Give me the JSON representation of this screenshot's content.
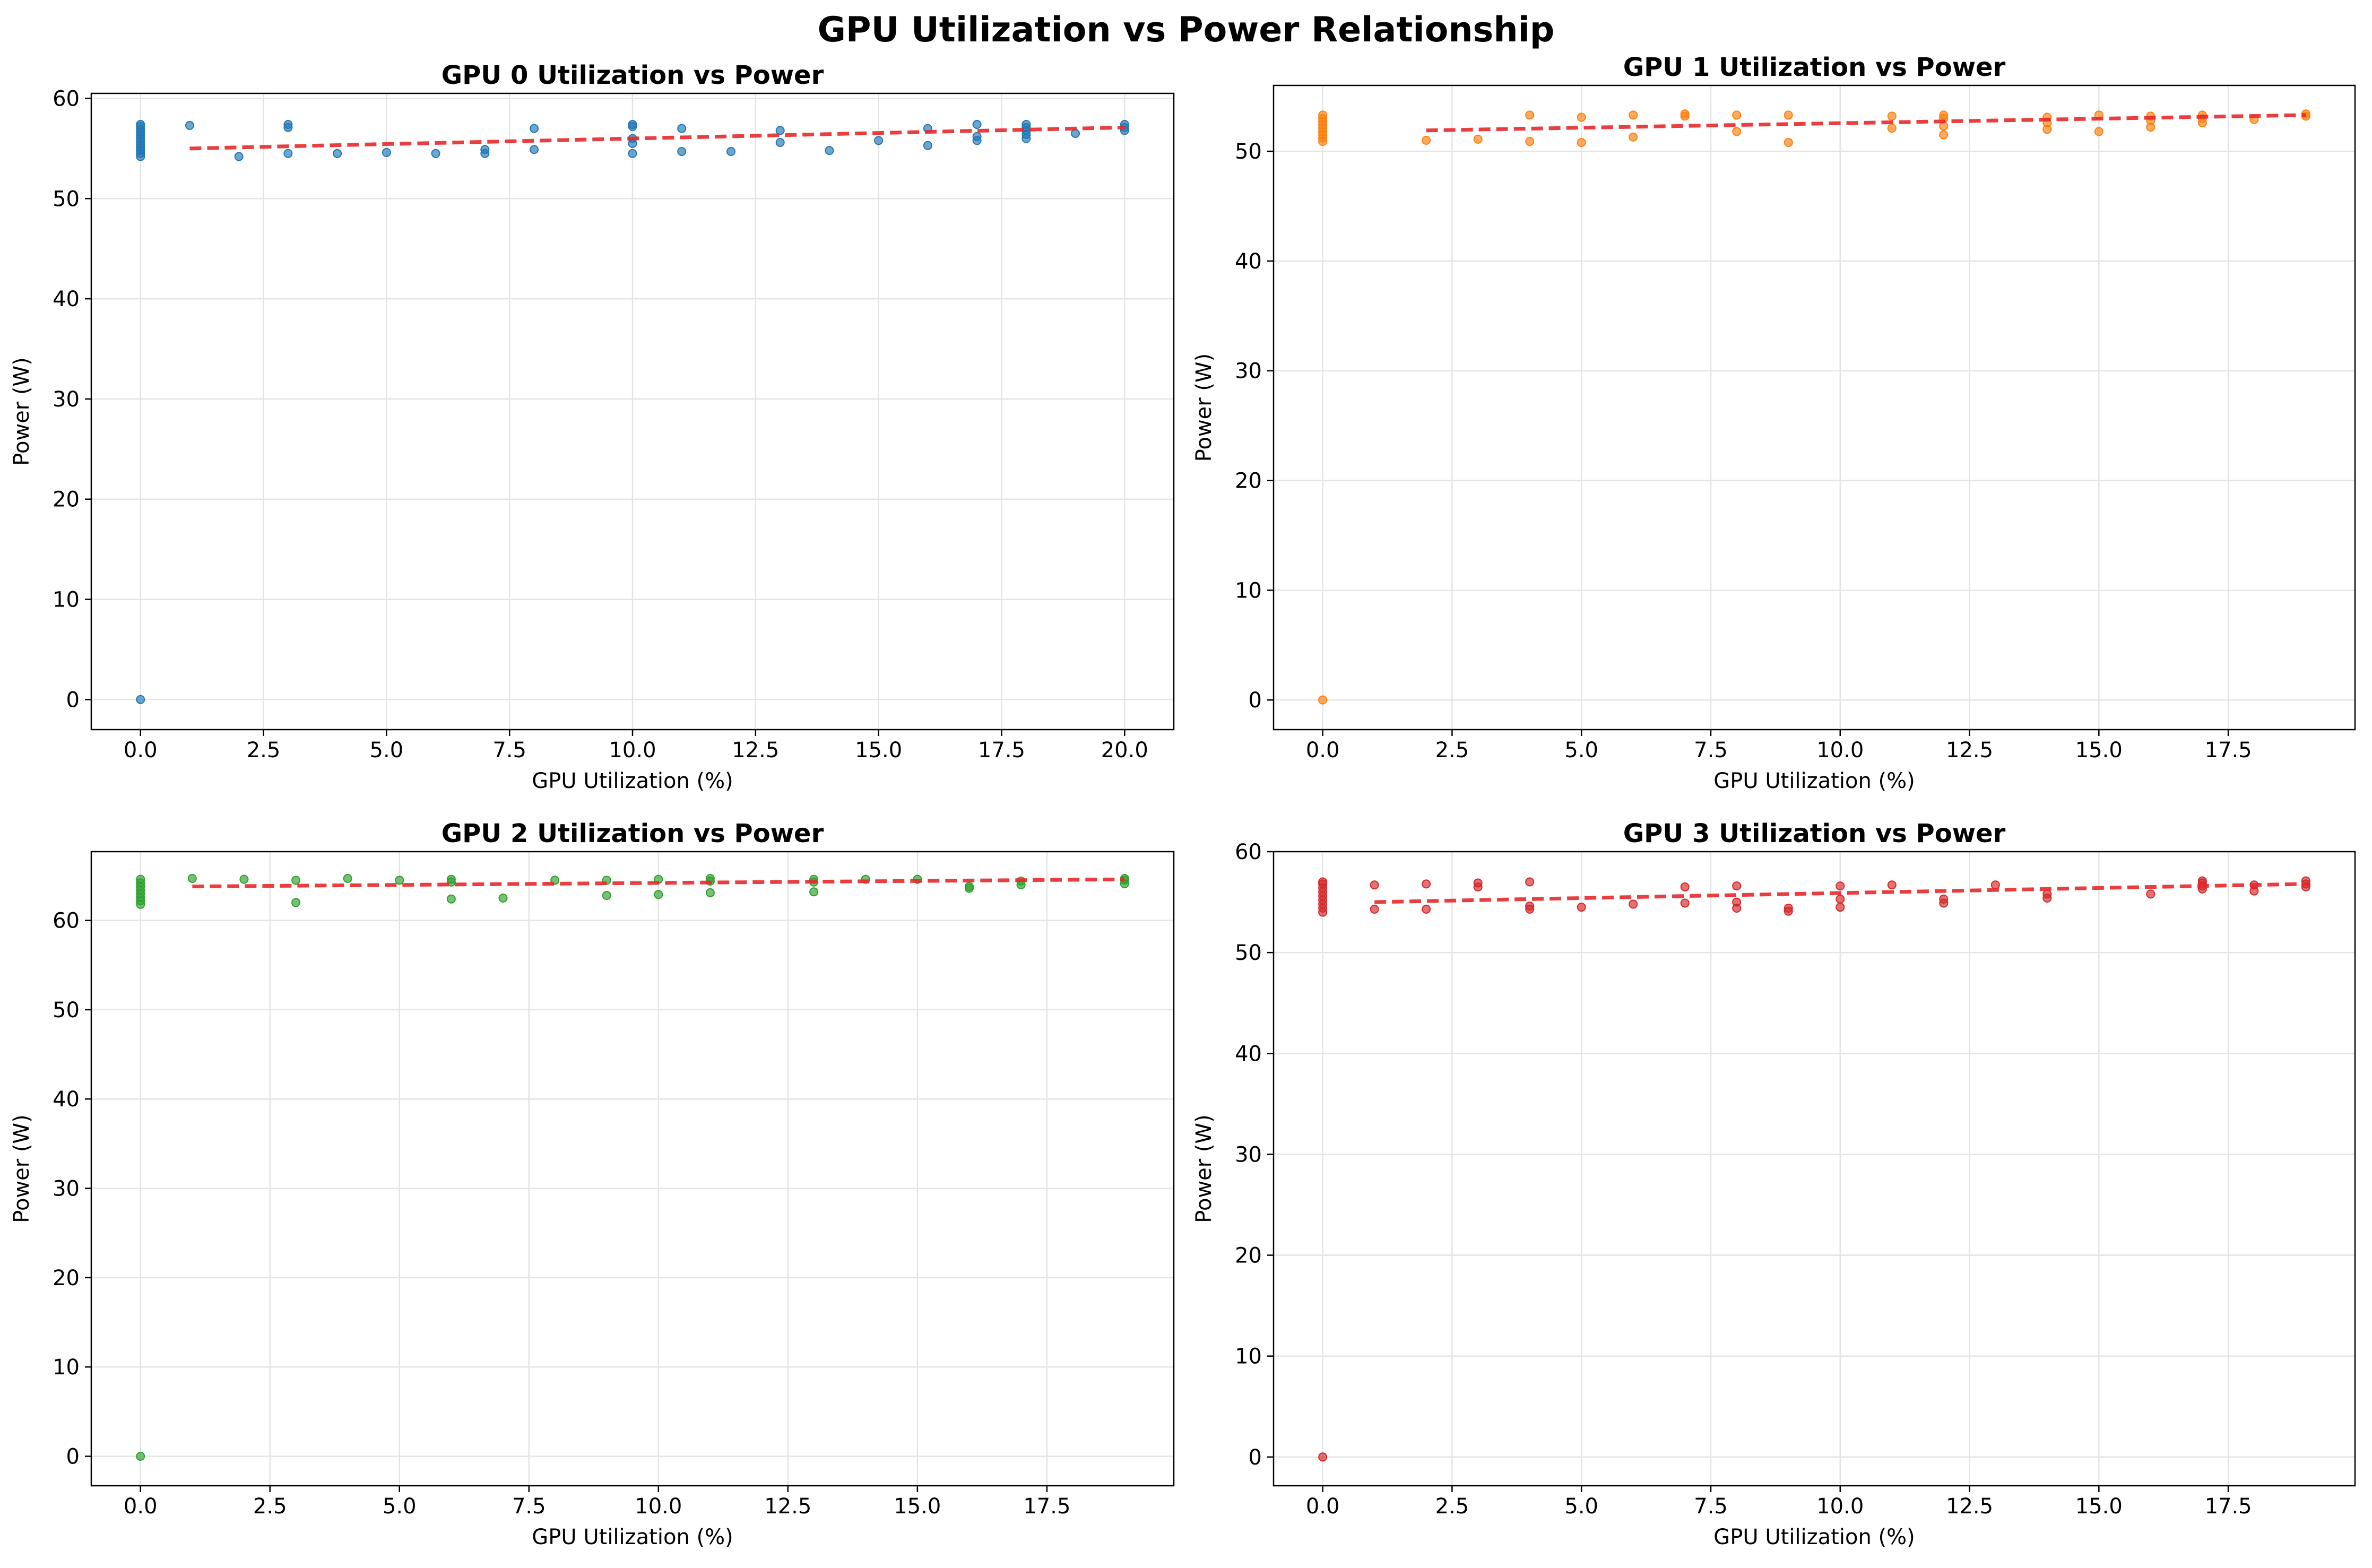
{
  "figure": {
    "suptitle": "GPU Utilization vs Power Relationship"
  },
  "chart_data": [
    {
      "type": "scatter",
      "title": "GPU 0 Utilization vs Power",
      "xlabel": "GPU Utilization (%)",
      "ylabel": "Power (W)",
      "xlim": [
        -1.0,
        21.0
      ],
      "ylim": [
        -3.0,
        60.5
      ],
      "xticks": [
        0,
        2.5,
        5,
        7.5,
        10,
        12.5,
        15,
        17.5,
        20
      ],
      "xtick_labels": [
        "0.0",
        "2.5",
        "5.0",
        "7.5",
        "10.0",
        "12.5",
        "15.0",
        "17.5",
        "20.0"
      ],
      "yticks": [
        0,
        10,
        20,
        30,
        40,
        50,
        60
      ],
      "ytick_labels": [
        "0",
        "10",
        "20",
        "30",
        "40",
        "50",
        "60"
      ],
      "grid": true,
      "point_color": "#1f77b4",
      "trend_color": "#e8282b",
      "points": [
        [
          0,
          0
        ],
        [
          0,
          54.2
        ],
        [
          0,
          54.5
        ],
        [
          0,
          54.8
        ],
        [
          0,
          55.1
        ],
        [
          0,
          55.4
        ],
        [
          0,
          55.7
        ],
        [
          0,
          56.0
        ],
        [
          0,
          56.3
        ],
        [
          0,
          56.6
        ],
        [
          0,
          56.9
        ],
        [
          0,
          57.2
        ],
        [
          0,
          57.4
        ],
        [
          1,
          57.3
        ],
        [
          2,
          54.2
        ],
        [
          3,
          54.5
        ],
        [
          3,
          57.1
        ],
        [
          3,
          57.4
        ],
        [
          4,
          54.5
        ],
        [
          5,
          54.6
        ],
        [
          6,
          54.5
        ],
        [
          7,
          54.5
        ],
        [
          7,
          54.9
        ],
        [
          8,
          54.9
        ],
        [
          8,
          57.0
        ],
        [
          10,
          54.5
        ],
        [
          10,
          55.5
        ],
        [
          10,
          56.0
        ],
        [
          10,
          57.2
        ],
        [
          10,
          57.4
        ],
        [
          11,
          54.7
        ],
        [
          11,
          57.0
        ],
        [
          12,
          54.7
        ],
        [
          13,
          55.6
        ],
        [
          13,
          56.8
        ],
        [
          14,
          54.8
        ],
        [
          15,
          55.8
        ],
        [
          16,
          55.3
        ],
        [
          16,
          57.0
        ],
        [
          17,
          55.8
        ],
        [
          17,
          56.2
        ],
        [
          17,
          57.4
        ],
        [
          18,
          56.0
        ],
        [
          18,
          56.4
        ],
        [
          18,
          56.8
        ],
        [
          18,
          57.1
        ],
        [
          18,
          57.4
        ],
        [
          19,
          56.5
        ],
        [
          20,
          56.8
        ],
        [
          20,
          57.1
        ],
        [
          20,
          57.4
        ]
      ],
      "trend": {
        "x": [
          1,
          20
        ],
        "y": [
          55.0,
          57.1
        ]
      }
    },
    {
      "type": "scatter",
      "title": "GPU 1 Utilization vs Power",
      "xlabel": "GPU Utilization (%)",
      "ylabel": "Power (W)",
      "xlim": [
        -0.95,
        19.95
      ],
      "ylim": [
        -2.7,
        56.0
      ],
      "xticks": [
        0,
        2.5,
        5,
        7.5,
        10,
        12.5,
        15,
        17.5
      ],
      "xtick_labels": [
        "0.0",
        "2.5",
        "5.0",
        "7.5",
        "10.0",
        "12.5",
        "15.0",
        "17.5"
      ],
      "yticks": [
        0,
        10,
        20,
        30,
        40,
        50
      ],
      "ytick_labels": [
        "0",
        "10",
        "20",
        "30",
        "40",
        "50"
      ],
      "grid": true,
      "point_color": "#ff7f0e",
      "trend_color": "#e8282b",
      "points": [
        [
          0,
          0
        ],
        [
          0,
          50.9
        ],
        [
          0,
          51.2
        ],
        [
          0,
          51.5
        ],
        [
          0,
          51.8
        ],
        [
          0,
          52.1
        ],
        [
          0,
          52.4
        ],
        [
          0,
          52.7
        ],
        [
          0,
          53.0
        ],
        [
          0,
          53.3
        ],
        [
          2,
          51.0
        ],
        [
          3,
          51.1
        ],
        [
          4,
          50.9
        ],
        [
          4,
          53.3
        ],
        [
          5,
          50.8
        ],
        [
          5,
          53.1
        ],
        [
          6,
          51.3
        ],
        [
          6,
          53.3
        ],
        [
          7,
          53.2
        ],
        [
          7,
          53.4
        ],
        [
          8,
          51.8
        ],
        [
          8,
          53.3
        ],
        [
          9,
          50.8
        ],
        [
          9,
          53.3
        ],
        [
          11,
          52.1
        ],
        [
          11,
          53.2
        ],
        [
          12,
          51.5
        ],
        [
          12,
          52.3
        ],
        [
          12,
          53.0
        ],
        [
          12,
          53.3
        ],
        [
          14,
          52.0
        ],
        [
          14,
          52.6
        ],
        [
          14,
          53.1
        ],
        [
          15,
          51.8
        ],
        [
          15,
          53.3
        ],
        [
          16,
          52.2
        ],
        [
          16,
          52.8
        ],
        [
          16,
          53.2
        ],
        [
          17,
          52.6
        ],
        [
          17,
          53.0
        ],
        [
          17,
          53.3
        ],
        [
          18,
          52.9
        ],
        [
          19,
          53.2
        ],
        [
          19,
          53.4
        ]
      ],
      "trend": {
        "x": [
          2,
          19
        ],
        "y": [
          51.9,
          53.3
        ]
      }
    },
    {
      "type": "scatter",
      "title": "GPU 2 Utilization vs Power",
      "xlabel": "GPU Utilization (%)",
      "ylabel": "Power (W)",
      "xlim": [
        -0.95,
        19.95
      ],
      "ylim": [
        -3.3,
        67.7
      ],
      "xticks": [
        0,
        2.5,
        5,
        7.5,
        10,
        12.5,
        15,
        17.5
      ],
      "xtick_labels": [
        "0.0",
        "2.5",
        "5.0",
        "7.5",
        "10.0",
        "12.5",
        "15.0",
        "17.5"
      ],
      "yticks": [
        0,
        10,
        20,
        30,
        40,
        50,
        60
      ],
      "ytick_labels": [
        "0",
        "10",
        "20",
        "30",
        "40",
        "50",
        "60"
      ],
      "grid": true,
      "point_color": "#2ca02c",
      "trend_color": "#e8282b",
      "points": [
        [
          0,
          0
        ],
        [
          0,
          61.8
        ],
        [
          0,
          62.2
        ],
        [
          0,
          62.6
        ],
        [
          0,
          63.0
        ],
        [
          0,
          63.4
        ],
        [
          0,
          63.8
        ],
        [
          0,
          64.2
        ],
        [
          0,
          64.6
        ],
        [
          1,
          64.7
        ],
        [
          2,
          64.6
        ],
        [
          3,
          62.0
        ],
        [
          3,
          64.5
        ],
        [
          4,
          64.7
        ],
        [
          5,
          64.5
        ],
        [
          6,
          62.4
        ],
        [
          6,
          64.3
        ],
        [
          6,
          64.6
        ],
        [
          7,
          62.5
        ],
        [
          8,
          64.5
        ],
        [
          9,
          62.8
        ],
        [
          9,
          64.5
        ],
        [
          10,
          62.9
        ],
        [
          10,
          64.6
        ],
        [
          11,
          63.1
        ],
        [
          11,
          64.4
        ],
        [
          11,
          64.7
        ],
        [
          13,
          63.2
        ],
        [
          13,
          64.3
        ],
        [
          13,
          64.6
        ],
        [
          14,
          64.6
        ],
        [
          15,
          64.6
        ],
        [
          16,
          63.6
        ],
        [
          16,
          63.8
        ],
        [
          17,
          64.0
        ],
        [
          17,
          64.4
        ],
        [
          19,
          64.1
        ],
        [
          19,
          64.5
        ],
        [
          19,
          64.7
        ]
      ],
      "trend": {
        "x": [
          1,
          19
        ],
        "y": [
          63.8,
          64.6
        ]
      }
    },
    {
      "type": "scatter",
      "title": "GPU 3 Utilization vs Power",
      "xlabel": "GPU Utilization (%)",
      "ylabel": "Power (W)",
      "xlim": [
        -0.95,
        19.95
      ],
      "ylim": [
        -2.85,
        60.0
      ],
      "xticks": [
        0,
        2.5,
        5,
        7.5,
        10,
        12.5,
        15,
        17.5
      ],
      "xtick_labels": [
        "0.0",
        "2.5",
        "5.0",
        "7.5",
        "10.0",
        "12.5",
        "15.0",
        "17.5"
      ],
      "yticks": [
        0,
        10,
        20,
        30,
        40,
        50,
        60
      ],
      "ytick_labels": [
        "0",
        "10",
        "20",
        "30",
        "40",
        "50",
        "60"
      ],
      "grid": true,
      "point_color": "#d62728",
      "trend_color": "#e8282b",
      "points": [
        [
          0,
          0
        ],
        [
          0,
          54.0
        ],
        [
          0,
          54.4
        ],
        [
          0,
          54.8
        ],
        [
          0,
          55.2
        ],
        [
          0,
          55.6
        ],
        [
          0,
          56.0
        ],
        [
          0,
          56.4
        ],
        [
          0,
          56.8
        ],
        [
          0,
          57.0
        ],
        [
          1,
          54.3
        ],
        [
          1,
          56.7
        ],
        [
          2,
          54.3
        ],
        [
          2,
          56.8
        ],
        [
          3,
          56.5
        ],
        [
          3,
          56.9
        ],
        [
          4,
          54.3
        ],
        [
          4,
          54.6
        ],
        [
          4,
          57.0
        ],
        [
          5,
          54.5
        ],
        [
          6,
          54.8
        ],
        [
          7,
          54.9
        ],
        [
          7,
          56.5
        ],
        [
          8,
          54.4
        ],
        [
          8,
          55.0
        ],
        [
          8,
          56.6
        ],
        [
          9,
          54.1
        ],
        [
          9,
          54.4
        ],
        [
          10,
          54.5
        ],
        [
          10,
          55.3
        ],
        [
          10,
          56.6
        ],
        [
          11,
          56.7
        ],
        [
          12,
          54.9
        ],
        [
          12,
          55.3
        ],
        [
          13,
          56.7
        ],
        [
          14,
          55.4
        ],
        [
          14,
          55.8
        ],
        [
          16,
          55.8
        ],
        [
          17,
          56.3
        ],
        [
          17,
          56.6
        ],
        [
          17,
          56.9
        ],
        [
          17,
          57.1
        ],
        [
          18,
          56.1
        ],
        [
          18,
          56.7
        ],
        [
          19,
          56.5
        ],
        [
          19,
          56.8
        ],
        [
          19,
          57.1
        ]
      ],
      "trend": {
        "x": [
          1,
          19
        ],
        "y": [
          55.0,
          56.8
        ]
      }
    }
  ]
}
